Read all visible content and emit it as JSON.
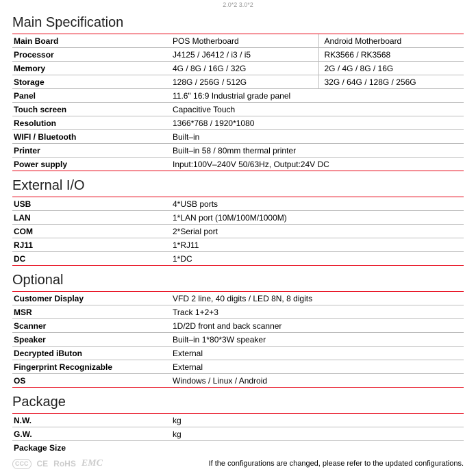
{
  "header_fragment": "2.0*2 3.0*2",
  "sections": [
    {
      "title": "Main Specification",
      "rows": [
        {
          "label": "Main Board",
          "cols": [
            "POS Motherboard",
            "Android Motherboard"
          ],
          "split": true
        },
        {
          "label": "Processor",
          "cols": [
            "J4125 / J6412 / i3 / i5",
            "RK3566 / RK3568"
          ],
          "split": true
        },
        {
          "label": "Memory",
          "cols": [
            " 4G / 8G / 16G / 32G",
            "2G / 4G / 8G / 16G"
          ],
          "split": true
        },
        {
          "label": "Storage",
          "cols": [
            "128G / 256G / 512G",
            "32G / 64G / 128G / 256G"
          ],
          "split": true
        },
        {
          "label": "Panel",
          "cols": [
            "11.6\" 16:9 Industrial grade panel"
          ],
          "split": false
        },
        {
          "label": "Touch screen",
          "cols": [
            "Capacitive Touch"
          ],
          "split": false
        },
        {
          "label": "Resolution",
          "cols": [
            "1366*768  /  1920*1080"
          ],
          "split": false
        },
        {
          "label": "WIFI / Bluetooth",
          "cols": [
            "Built–in"
          ],
          "split": false
        },
        {
          "label": "Printer",
          "cols": [
            "Built–in 58 / 80mm thermal printer"
          ],
          "split": false
        },
        {
          "label": "Power supply",
          "cols": [
            "Input:100V–240V 50/63Hz, Output:24V DC"
          ],
          "split": false,
          "last": true
        }
      ]
    },
    {
      "title": "External I/O",
      "rows": [
        {
          "label": "USB",
          "cols": [
            "4*USB ports"
          ],
          "split": false
        },
        {
          "label": "LAN",
          "cols": [
            "1*LAN port (10M/100M/1000M)"
          ],
          "split": false
        },
        {
          "label": "COM",
          "cols": [
            "2*Serial port"
          ],
          "split": false
        },
        {
          "label": "RJ11",
          "cols": [
            "1*RJ11"
          ],
          "split": false
        },
        {
          "label": "DC",
          "cols": [
            "1*DC"
          ],
          "split": false,
          "last": true
        }
      ]
    },
    {
      "title": "Optional",
      "rows": [
        {
          "label": "Customer Display",
          "cols": [
            "VFD 2 line, 40 digits / LED 8N, 8 digits"
          ],
          "split": false
        },
        {
          "label": "MSR",
          "cols": [
            "Track 1+2+3"
          ],
          "split": false
        },
        {
          "label": "Scanner",
          "cols": [
            "1D/2D front and back scanner"
          ],
          "split": false
        },
        {
          "label": "Speaker",
          "cols": [
            "Built–in 1*80*3W speaker"
          ],
          "split": false
        },
        {
          "label": "Decrypted iButon",
          "cols": [
            "External"
          ],
          "split": false
        },
        {
          "label": "Fingerprint Recognizable",
          "cols": [
            "External"
          ],
          "split": false
        },
        {
          "label": "OS",
          "cols": [
            "Windows / Linux / Android"
          ],
          "split": false,
          "last": true
        }
      ]
    },
    {
      "title": "Package",
      "rows": [
        {
          "label": "N.W.",
          "cols": [
            "kg"
          ],
          "split": false
        },
        {
          "label": "G.W.",
          "cols": [
            "kg"
          ],
          "split": false
        },
        {
          "label": "Package Size",
          "cols": [
            ""
          ],
          "split": false,
          "noborder": true
        }
      ]
    }
  ],
  "footer": {
    "certs": [
      "CCC",
      "CE",
      "RoHS",
      "EMC"
    ],
    "note": "If the configurations are changed, please refer to the updated configurations."
  },
  "style": {
    "accent_color": "#e60012",
    "row_border_color": "#bbbbbb",
    "text_color": "#000000",
    "bg_color": "#ffffff"
  }
}
